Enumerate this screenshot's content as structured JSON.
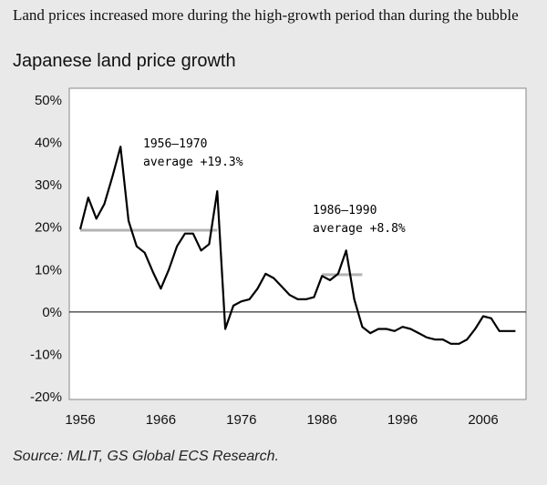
{
  "headline": "Land prices increased more during the high-growth period than during the bubble",
  "chart_data": {
    "type": "line",
    "title": "Japanese land price growth",
    "xlabel": "",
    "ylabel": "",
    "xlim": [
      1956,
      2010
    ],
    "ylim": [
      -20,
      50
    ],
    "x_ticks": [
      "1956",
      "1966",
      "1976",
      "1986",
      "1996",
      "2006"
    ],
    "y_ticks": [
      "50%",
      "40%",
      "30%",
      "20%",
      "10%",
      "0%",
      "-10%",
      "-20%"
    ],
    "grid": false,
    "series": [
      {
        "x": [
          1956,
          1957,
          1958,
          1959,
          1960,
          1961,
          1962,
          1963,
          1964,
          1965,
          1966,
          1967,
          1968,
          1969,
          1970,
          1971,
          1972,
          1973,
          1974,
          1975,
          1976,
          1977,
          1978,
          1979,
          1980,
          1981,
          1982,
          1983,
          1984,
          1985,
          1986,
          1987,
          1988,
          1989,
          1990,
          1991,
          1992,
          1993,
          1994,
          1995,
          1996,
          1997,
          1998,
          1999,
          2000,
          2001,
          2002,
          2003,
          2004,
          2005,
          2006,
          2007,
          2008,
          2009,
          2010
        ],
        "y": [
          19.5,
          27,
          22,
          25.5,
          32,
          39,
          21.5,
          15.5,
          14,
          9.5,
          5.5,
          10,
          15.5,
          18.5,
          18.5,
          14.5,
          16,
          28.5,
          -4,
          1.5,
          2.5,
          3,
          5.5,
          9,
          8,
          6,
          4,
          3,
          3,
          3.5,
          8.5,
          7.5,
          9,
          14.5,
          3,
          -3.5,
          -5,
          -4,
          -4,
          -4.5,
          -3.5,
          -4,
          -5,
          -6,
          -6.5,
          -6.5,
          -7.5,
          -7.5,
          -6.5,
          -4,
          -1,
          -1.5,
          -4.5,
          -4.5,
          -4.5
        ]
      }
    ],
    "averages": [
      {
        "from": 1956,
        "to": 1973,
        "value": 19.3,
        "label_period": "1956–1970",
        "label_value": "average +19.3%"
      },
      {
        "from": 1986,
        "to": 1991,
        "value": 8.8,
        "label_period": "1986–1990",
        "label_value": "average +8.8%"
      }
    ],
    "colors": {
      "line": "#000000",
      "average": "#b3b3b3",
      "plot_bg": "#ffffff",
      "page_bg": "#e9e9e9"
    }
  },
  "source": "Source: MLIT, GS Global ECS Research."
}
